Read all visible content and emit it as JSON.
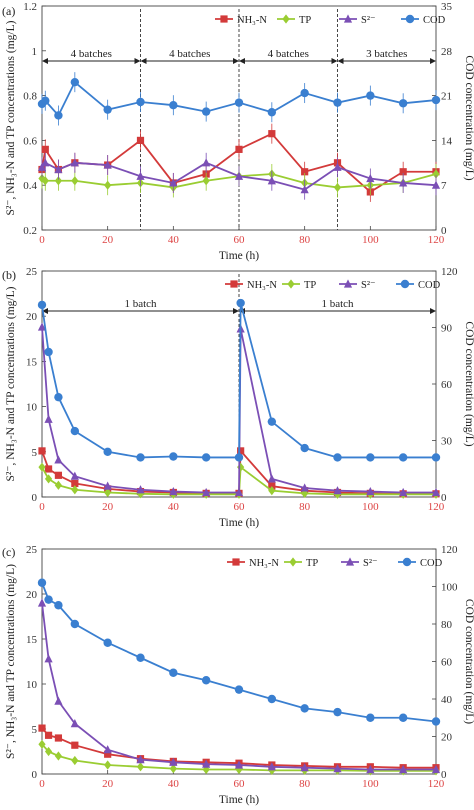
{
  "chart_data": [
    {
      "panel": "(a)",
      "type": "line",
      "xlabel": "Time (h)",
      "ylabel": "S²⁻, NH₃-N and TP concentrations (mg/L)",
      "y2label": "COD concentration (mg/L)",
      "xlim": [
        0,
        120
      ],
      "xticks": [
        0,
        20,
        40,
        60,
        80,
        100,
        120
      ],
      "ylim": [
        0.2,
        1.2
      ],
      "yticks": [
        "0.2",
        "0.4",
        "0.6",
        "0.8",
        "1",
        "1.2"
      ],
      "y2lim": [
        0,
        35
      ],
      "y2ticks": [
        "0",
        "7",
        "14",
        "21",
        "28",
        "35"
      ],
      "legend_position": "top-right",
      "batch_lines": [
        30,
        60,
        90
      ],
      "batch_labels": [
        "4 batches",
        "4 batches",
        "4 batches",
        "3 batches"
      ],
      "series": [
        {
          "name": "NH₃-N",
          "axis": "left",
          "color": "#d33a3a",
          "marker": "square",
          "x": [
            0,
            1,
            5,
            10,
            20,
            30,
            40,
            50,
            60,
            70,
            80,
            90,
            100,
            110,
            120
          ],
          "y": [
            0.47,
            0.56,
            0.47,
            0.5,
            0.49,
            0.6,
            0.41,
            0.45,
            0.56,
            0.63,
            0.46,
            0.5,
            0.37,
            0.46,
            0.46
          ]
        },
        {
          "name": "TP",
          "axis": "left",
          "color": "#9acd32",
          "marker": "diamond",
          "x": [
            0,
            1,
            5,
            10,
            20,
            30,
            40,
            50,
            60,
            70,
            80,
            90,
            100,
            110,
            120
          ],
          "y": [
            0.43,
            0.42,
            0.42,
            0.42,
            0.4,
            0.41,
            0.39,
            0.42,
            0.44,
            0.45,
            0.41,
            0.39,
            0.4,
            0.41,
            0.45
          ]
        },
        {
          "name": "S²⁻",
          "axis": "left",
          "color": "#7b4fb5",
          "marker": "triangle",
          "x": [
            0,
            1,
            5,
            10,
            20,
            30,
            40,
            50,
            60,
            70,
            80,
            90,
            100,
            110,
            120
          ],
          "y": [
            0.48,
            0.5,
            0.47,
            0.5,
            0.49,
            0.44,
            0.41,
            0.5,
            0.44,
            0.42,
            0.38,
            0.48,
            0.43,
            0.41,
            0.4
          ]
        },
        {
          "name": "COD",
          "axis": "right",
          "color": "#3a7fd0",
          "marker": "circle",
          "x": [
            0,
            1,
            5,
            10,
            20,
            30,
            40,
            50,
            60,
            70,
            80,
            90,
            100,
            110,
            120
          ],
          "y": [
            19.7,
            20.2,
            17.9,
            23.1,
            18.8,
            20.0,
            19.5,
            18.5,
            19.9,
            18.4,
            21.4,
            19.9,
            21.0,
            19.8,
            20.3
          ]
        }
      ]
    },
    {
      "panel": "(b)",
      "type": "line",
      "xlabel": "Time (h)",
      "ylabel": "S²⁻, NH₃-N and TP concentrations (mg/L)",
      "y2label": "COD concentration (mg/L)",
      "xlim": [
        0,
        120
      ],
      "xticks": [
        0,
        20,
        40,
        60,
        80,
        100,
        120
      ],
      "ylim": [
        0,
        25
      ],
      "yticks": [
        "0",
        "5",
        "10",
        "15",
        "20",
        "25"
      ],
      "y2lim": [
        0,
        120
      ],
      "y2ticks": [
        "0",
        "30",
        "60",
        "90",
        "120"
      ],
      "legend_position": "top-right",
      "batch_lines": [
        60
      ],
      "batch_labels": [
        "1 batch",
        "1 batch"
      ],
      "series": [
        {
          "name": "NH₃-N",
          "axis": "left",
          "color": "#d33a3a",
          "marker": "square",
          "x": [
            0,
            2,
            5,
            10,
            20,
            30,
            40,
            50,
            60,
            60.5,
            70,
            80,
            90,
            100,
            110,
            120
          ],
          "y": [
            5.1,
            3.1,
            2.4,
            1.5,
            0.9,
            0.6,
            0.5,
            0.4,
            0.4,
            5.1,
            1.2,
            0.7,
            0.5,
            0.4,
            0.35,
            0.35
          ]
        },
        {
          "name": "TP",
          "axis": "left",
          "color": "#9acd32",
          "marker": "diamond",
          "x": [
            0,
            2,
            5,
            10,
            20,
            30,
            40,
            50,
            60,
            60.5,
            70,
            80,
            90,
            100,
            110,
            120
          ],
          "y": [
            3.3,
            2.0,
            1.3,
            0.8,
            0.5,
            0.35,
            0.3,
            0.3,
            0.3,
            3.3,
            0.7,
            0.4,
            0.3,
            0.3,
            0.3,
            0.3
          ]
        },
        {
          "name": "S²⁻",
          "axis": "left",
          "color": "#7b4fb5",
          "marker": "triangle",
          "x": [
            0,
            2,
            5,
            10,
            20,
            30,
            40,
            50,
            60,
            60.5,
            70,
            80,
            90,
            100,
            110,
            120
          ],
          "y": [
            18.8,
            8.6,
            4.1,
            2.3,
            1.2,
            0.8,
            0.6,
            0.5,
            0.5,
            18.6,
            2.0,
            1.0,
            0.7,
            0.6,
            0.5,
            0.5
          ]
        },
        {
          "name": "COD",
          "axis": "right",
          "color": "#3a7fd0",
          "marker": "circle",
          "x": [
            0,
            2,
            5,
            10,
            20,
            30,
            40,
            50,
            60,
            60.5,
            70,
            80,
            90,
            100,
            110,
            120
          ],
          "y": [
            102,
            77,
            53,
            35,
            24,
            21,
            21.5,
            21,
            21,
            103,
            40,
            26,
            21,
            21,
            21,
            21
          ]
        }
      ]
    },
    {
      "panel": "(c)",
      "type": "line",
      "xlabel": "Time (h)",
      "ylabel": "S²⁻, NH₃-N and TP concentrations (mg/L)",
      "y2label": "COD concentration (mg/L)",
      "xlim": [
        0,
        120
      ],
      "xticks": [
        0,
        20,
        40,
        60,
        80,
        100,
        120
      ],
      "ylim": [
        0,
        25
      ],
      "yticks": [
        "0",
        "5",
        "10",
        "15",
        "20",
        "25"
      ],
      "y2lim": [
        0,
        120
      ],
      "y2ticks": [
        "0",
        "20",
        "40",
        "60",
        "80",
        "100",
        "120"
      ],
      "legend_position": "top-right",
      "batch_lines": [],
      "batch_labels": [],
      "series": [
        {
          "name": "NH₃-N",
          "axis": "left",
          "color": "#d33a3a",
          "marker": "square",
          "x": [
            0,
            2,
            5,
            10,
            20,
            30,
            40,
            50,
            60,
            70,
            80,
            90,
            100,
            110,
            120
          ],
          "y": [
            5.1,
            4.3,
            4.0,
            3.2,
            2.2,
            1.7,
            1.4,
            1.3,
            1.2,
            1.0,
            0.9,
            0.8,
            0.8,
            0.7,
            0.7
          ]
        },
        {
          "name": "TP",
          "axis": "left",
          "color": "#9acd32",
          "marker": "diamond",
          "x": [
            0,
            2,
            5,
            10,
            20,
            30,
            40,
            50,
            60,
            70,
            80,
            90,
            100,
            110,
            120
          ],
          "y": [
            3.3,
            2.5,
            2.0,
            1.5,
            1.0,
            0.8,
            0.6,
            0.5,
            0.5,
            0.4,
            0.4,
            0.4,
            0.35,
            0.35,
            0.35
          ]
        },
        {
          "name": "S²⁻",
          "axis": "left",
          "color": "#7b4fb5",
          "marker": "triangle",
          "x": [
            0,
            2,
            5,
            10,
            20,
            30,
            40,
            50,
            60,
            70,
            80,
            90,
            100,
            110,
            120
          ],
          "y": [
            19.0,
            12.8,
            8.1,
            5.6,
            2.7,
            1.6,
            1.3,
            1.1,
            1.0,
            0.8,
            0.7,
            0.6,
            0.5,
            0.5,
            0.5
          ]
        },
        {
          "name": "COD",
          "axis": "right",
          "color": "#3a7fd0",
          "marker": "circle",
          "x": [
            0,
            2,
            5,
            10,
            20,
            30,
            40,
            50,
            60,
            70,
            80,
            90,
            100,
            110,
            120
          ],
          "y": [
            102,
            93,
            90,
            80,
            70,
            62,
            54,
            50,
            45,
            40,
            35,
            33,
            30,
            30,
            28
          ]
        }
      ]
    }
  ]
}
